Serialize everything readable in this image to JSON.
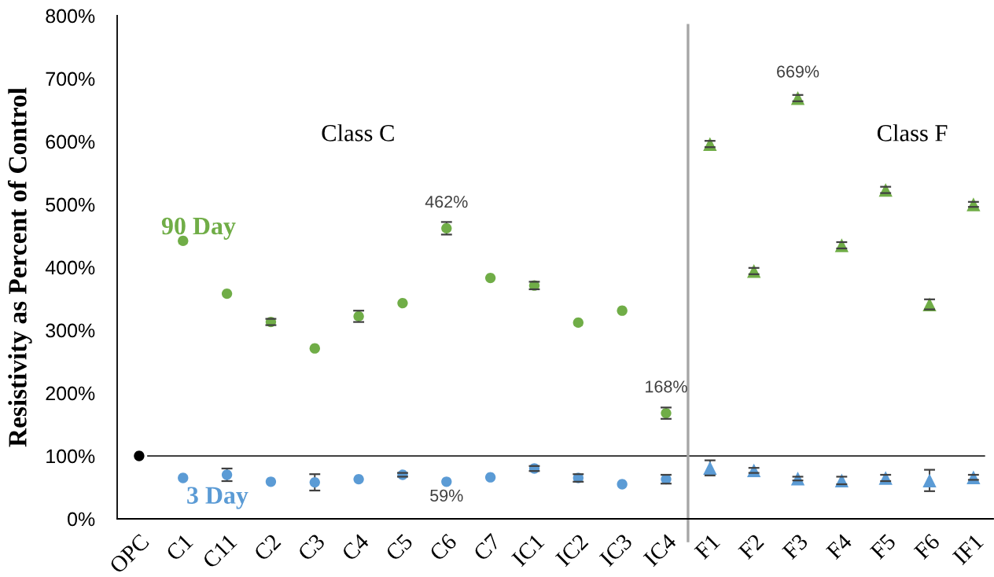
{
  "chart_data": {
    "type": "scatter",
    "ylabel": "Resistivity as Percent of Control",
    "categories": [
      "OPC",
      "C1",
      "C11",
      "C2",
      "C3",
      "C4",
      "C5",
      "C6",
      "C7",
      "IC1",
      "IC2",
      "IC3",
      "IC4",
      "F1",
      "F2",
      "F3",
      "F4",
      "F5",
      "F6",
      "IF1"
    ],
    "series": [
      {
        "color": "#000000",
        "marker": "circle",
        "values": [
          100,
          null,
          null,
          null,
          null,
          null,
          null,
          null,
          null,
          null,
          null,
          null,
          null,
          null,
          null,
          null,
          null,
          null,
          null,
          null
        ]
      },
      {
        "name": "90 Day",
        "color": "#70ad47",
        "marker": "circle",
        "values": [
          null,
          442,
          358,
          313,
          271,
          322,
          343,
          462,
          383,
          371,
          312,
          331,
          168,
          null,
          null,
          null,
          null,
          null,
          null,
          null
        ],
        "errors": [
          null,
          null,
          null,
          5,
          null,
          9,
          null,
          10,
          null,
          6,
          null,
          null,
          9,
          null,
          null,
          null,
          null,
          null,
          null,
          null
        ],
        "value_labels": [
          null,
          null,
          null,
          null,
          null,
          null,
          null,
          "462%",
          null,
          null,
          null,
          null,
          "168%",
          null,
          null,
          null,
          null,
          null,
          null,
          null
        ]
      },
      {
        "color": "#70ad47",
        "marker": "triangle",
        "values": [
          null,
          null,
          null,
          null,
          null,
          null,
          null,
          null,
          null,
          null,
          null,
          null,
          null,
          596,
          394,
          669,
          435,
          523,
          341,
          500
        ],
        "errors": [
          null,
          null,
          null,
          null,
          null,
          null,
          null,
          null,
          null,
          null,
          null,
          null,
          null,
          5,
          5,
          5,
          5,
          5,
          8,
          4
        ],
        "value_labels": [
          null,
          null,
          null,
          null,
          null,
          null,
          null,
          null,
          null,
          null,
          null,
          null,
          null,
          null,
          null,
          "669%",
          null,
          null,
          null,
          null
        ]
      },
      {
        "name": "3 Day",
        "color": "#5b9bd5",
        "marker": "circle",
        "values": [
          null,
          65,
          70,
          59,
          58,
          63,
          70,
          59,
          66,
          80,
          65,
          55,
          63,
          null,
          null,
          null,
          null,
          null,
          null,
          null
        ],
        "errors": [
          null,
          null,
          10,
          null,
          13,
          null,
          3,
          null,
          null,
          4,
          6,
          null,
          7,
          null,
          null,
          null,
          null,
          null,
          null,
          null
        ],
        "value_labels": [
          null,
          null,
          null,
          null,
          null,
          null,
          null,
          "59%",
          null,
          null,
          null,
          null,
          null,
          null,
          null,
          null,
          null,
          null,
          null,
          null
        ]
      },
      {
        "color": "#5b9bd5",
        "marker": "triangle",
        "values": [
          null,
          null,
          null,
          null,
          null,
          null,
          null,
          null,
          null,
          null,
          null,
          null,
          null,
          81,
          77,
          64,
          61,
          65,
          61,
          66
        ],
        "errors": [
          null,
          null,
          null,
          null,
          null,
          null,
          null,
          null,
          null,
          null,
          null,
          null,
          null,
          12,
          4,
          3,
          6,
          5,
          17,
          4
        ]
      }
    ],
    "ylim": [
      0,
      800
    ],
    "yticks": [
      {
        "value": 0,
        "label": "0%"
      },
      {
        "value": 100,
        "label": "100%"
      },
      {
        "value": 200,
        "label": "200%"
      },
      {
        "value": 300,
        "label": "300%"
      },
      {
        "value": 400,
        "label": "400%"
      },
      {
        "value": 500,
        "label": "500%"
      },
      {
        "value": 600,
        "label": "600%"
      },
      {
        "value": 700,
        "label": "700%"
      },
      {
        "value": 800,
        "label": "800%"
      }
    ],
    "ref_lines": [
      {
        "axis": "y",
        "value": 100,
        "color": "#000000"
      },
      {
        "axis": "x",
        "value": "F1",
        "color": "#a6a6a6"
      }
    ],
    "annotations": [
      "Class C",
      "Class F"
    ]
  }
}
